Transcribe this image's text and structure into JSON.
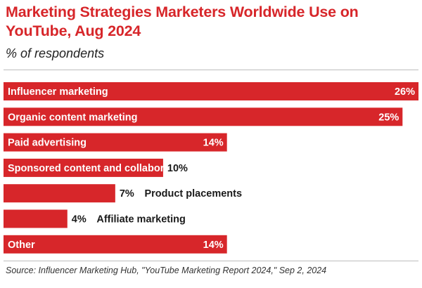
{
  "header": {
    "title": "Marketing Strategies Marketers Worldwide Use on YouTube, Aug 2024",
    "subtitle": "% of respondents"
  },
  "footer": {
    "source": "Source: Influencer Marketing Hub, \"YouTube Marketing Report 2024,\" Sep 2, 2024"
  },
  "colors": {
    "bar": "#d7262a",
    "title": "#d7262a"
  },
  "chart_data": {
    "type": "bar",
    "orientation": "horizontal",
    "title": "Marketing Strategies Marketers Worldwide Use on YouTube, Aug 2024",
    "subtitle": "% of respondents",
    "categories": [
      "Influencer marketing",
      "Organic content marketing",
      "Paid advertising",
      "Sponsored content and collaborations",
      "Product placements",
      "Affiliate marketing",
      "Other"
    ],
    "values": [
      26,
      25,
      14,
      10,
      7,
      4,
      14
    ],
    "value_labels": [
      "26%",
      "25%",
      "14%",
      "10%",
      "7%",
      "4%",
      "14%"
    ],
    "xlim": [
      0,
      26
    ],
    "grid": false,
    "legend": "none"
  }
}
